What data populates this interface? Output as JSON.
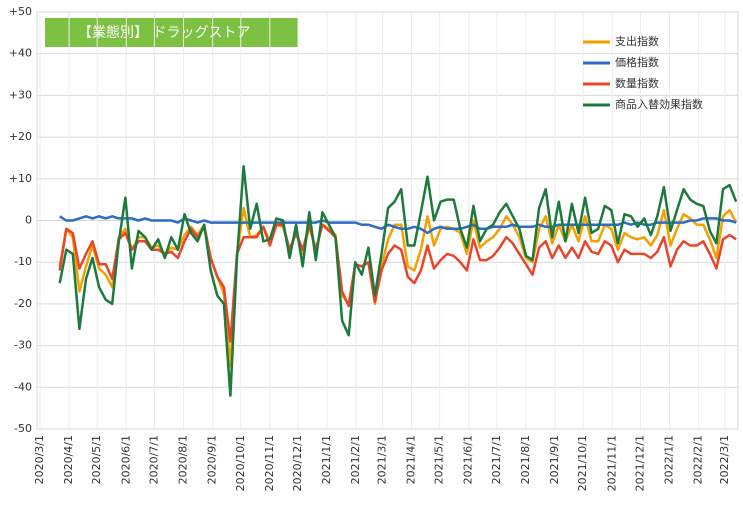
{
  "chart_data": {
    "type": "line",
    "title": "【業態別】 ドラッグストア",
    "x": [
      "2020/3/22",
      "2020/3/29",
      "2020/4/5",
      "2020/4/12",
      "2020/4/19",
      "2020/4/26",
      "2020/5/3",
      "2020/5/10",
      "2020/5/17",
      "2020/5/24",
      "2020/5/31",
      "2020/6/7",
      "2020/6/14",
      "2020/6/21",
      "2020/6/28",
      "2020/7/5",
      "2020/7/12",
      "2020/7/19",
      "2020/7/26",
      "2020/8/2",
      "2020/8/9",
      "2020/8/16",
      "2020/8/23",
      "2020/8/30",
      "2020/9/6",
      "2020/9/13",
      "2020/9/20",
      "2020/9/27",
      "2020/10/4",
      "2020/10/11",
      "2020/10/18",
      "2020/10/25",
      "2020/11/1",
      "2020/11/8",
      "2020/11/15",
      "2020/11/22",
      "2020/11/29",
      "2020/12/6",
      "2020/12/13",
      "2020/12/20",
      "2020/12/27",
      "2021/1/3",
      "2021/1/10",
      "2021/1/17",
      "2021/1/24",
      "2021/1/31",
      "2021/2/7",
      "2021/2/14",
      "2021/2/21",
      "2021/2/28",
      "2021/3/7",
      "2021/3/14",
      "2021/3/21",
      "2021/3/28",
      "2021/4/4",
      "2021/4/11",
      "2021/4/18",
      "2021/4/25",
      "2021/5/2",
      "2021/5/9",
      "2021/5/16",
      "2021/5/23",
      "2021/5/30",
      "2021/6/6",
      "2021/6/13",
      "2021/6/20",
      "2021/6/27",
      "2021/7/4",
      "2021/7/11",
      "2021/7/18",
      "2021/7/25",
      "2021/8/1",
      "2021/8/8",
      "2021/8/15",
      "2021/8/22",
      "2021/8/29",
      "2021/9/5",
      "2021/9/12",
      "2021/9/19",
      "2021/9/26",
      "2021/10/3",
      "2021/10/10",
      "2021/10/17",
      "2021/10/24",
      "2021/10/31",
      "2021/11/7",
      "2021/11/14",
      "2021/11/21",
      "2021/11/28",
      "2021/12/5",
      "2021/12/12",
      "2021/12/19",
      "2021/12/26",
      "2022/1/2",
      "2022/1/9",
      "2022/1/16",
      "2022/1/23",
      "2022/1/30",
      "2022/2/6",
      "2022/2/13",
      "2022/2/20",
      "2022/2/27",
      "2022/3/6",
      "2022/3/13"
    ],
    "series": [
      {
        "name": "支出指数",
        "color": "#f5a000",
        "values": [
          -11,
          -2,
          -4,
          -17,
          -11,
          -6,
          -11.5,
          -13,
          -16,
          -4,
          -2,
          -7,
          -4,
          -4,
          -6.5,
          -6,
          -8,
          -6.5,
          -7,
          -3.5,
          -1.5,
          -3.5,
          -1,
          -9,
          -13.5,
          -17.5,
          -35,
          -8,
          3,
          -4,
          -3.5,
          -1.5,
          -5,
          -1,
          -1.5,
          -7,
          -3,
          -8,
          -1.5,
          -7,
          -1,
          -2,
          -3.5,
          -18,
          -20,
          -10.5,
          -11,
          -10,
          -20,
          -11,
          -4.5,
          -1,
          -1,
          -11,
          -12,
          -7,
          1,
          -6,
          -2,
          -1.5,
          -2,
          -3,
          -8,
          0,
          -6.5,
          -5,
          -4,
          -2,
          1,
          -1,
          -4,
          -9,
          -10,
          -2,
          1,
          -5.5,
          -1,
          -5,
          -1,
          -5,
          1,
          -5,
          -5,
          -1,
          -2,
          -7,
          -3,
          -4,
          -4.5,
          -4,
          -6,
          -3.5,
          2.5,
          -6,
          -2,
          1.5,
          0.5,
          -1,
          -1,
          -4.5,
          -9,
          1,
          2.5,
          -0.5
        ]
      },
      {
        "name": "価格指数",
        "color": "#2e6bc4",
        "values": [
          1,
          0,
          0,
          0.5,
          1,
          0.5,
          1,
          0.5,
          1,
          0.5,
          0.5,
          0.5,
          0,
          0.5,
          0,
          0,
          0,
          0,
          -0.5,
          0.5,
          0,
          -0.5,
          0,
          -0.5,
          -0.5,
          -0.5,
          -0.5,
          -0.5,
          -0.5,
          -0.5,
          -0.5,
          -0.5,
          -0.5,
          -0.5,
          -0.5,
          -0.5,
          -0.5,
          -0.5,
          -0.5,
          -0.5,
          0,
          -0.5,
          -0.5,
          -0.5,
          -0.5,
          -0.5,
          -1,
          -1,
          -1.5,
          -2,
          -1,
          -1.5,
          -2,
          -2,
          -1.5,
          -2,
          -3,
          -2,
          -1.5,
          -2,
          -2,
          -2,
          -1.5,
          -1,
          -2,
          -2,
          -1.5,
          -1.5,
          -1.5,
          -1,
          -1.5,
          -1.5,
          -1.5,
          -1,
          -1.5,
          -1.5,
          -1,
          -1,
          -1,
          -1,
          -1,
          -1,
          -1,
          -1,
          -1,
          -1,
          -0.5,
          -1,
          -0.5,
          -1,
          -1,
          -0.5,
          -0.5,
          -0.5,
          -0.5,
          -0.5,
          0,
          0,
          0.5,
          0.5,
          0.5,
          0,
          0,
          -0.5
        ]
      },
      {
        "name": "数量指数",
        "color": "#e8452c",
        "values": [
          -12,
          -2,
          -3,
          -11.5,
          -8,
          -5,
          -10.5,
          -10.5,
          -14,
          -4.5,
          -3,
          -7,
          -5,
          -5,
          -7,
          -7,
          -8,
          -7.5,
          -9,
          -5,
          -2,
          -4,
          -1.5,
          -9,
          -13.5,
          -16,
          -29,
          -8,
          -4,
          -4,
          -4,
          -1.5,
          -6,
          -1,
          -1,
          -7,
          -3,
          -7,
          -1,
          -7,
          -1,
          -2.5,
          -4,
          -17,
          -20.5,
          -10.5,
          -11,
          -10,
          -19.5,
          -12,
          -8,
          -6,
          -7,
          -13.5,
          -15,
          -12,
          -6,
          -11.5,
          -9.5,
          -8,
          -8.5,
          -10,
          -12,
          -4.5,
          -9.5,
          -9.5,
          -8.5,
          -6.5,
          -4,
          -5.5,
          -8,
          -10.5,
          -13,
          -6.5,
          -5,
          -9,
          -6,
          -9,
          -6.5,
          -9,
          -5,
          -7.5,
          -8,
          -5,
          -6,
          -10,
          -7,
          -8,
          -8,
          -8,
          -9,
          -7.5,
          -4,
          -11,
          -7,
          -5,
          -6,
          -6,
          -5,
          -8,
          -11.5,
          -4.5,
          -3.5,
          -4.5
        ]
      },
      {
        "name": "商品入替効果指数",
        "color": "#1d7a3e",
        "values": [
          -15,
          -7,
          -8,
          -26,
          -14,
          -9,
          -16,
          -19,
          -20,
          -5,
          5.5,
          -11.5,
          -2.5,
          -4,
          -7,
          -4.5,
          -9,
          -4,
          -7,
          1.5,
          -3,
          -5,
          -1,
          -12,
          -18,
          -20,
          -42,
          -9,
          13,
          -2,
          4,
          -5,
          -4.5,
          0.5,
          0,
          -9,
          -1,
          -11,
          2,
          -9.5,
          2,
          -1,
          -4,
          -24,
          -27.5,
          -10,
          -13,
          -6.5,
          -18,
          -8,
          3,
          4.5,
          7.5,
          -6,
          -6,
          2,
          10.5,
          0,
          4.5,
          5,
          5,
          -2,
          -6.5,
          3.5,
          -5,
          -2,
          -1,
          2,
          4,
          1,
          -2,
          -8.5,
          -9.5,
          3,
          7.5,
          -4,
          4.5,
          -5,
          4,
          -3,
          5.5,
          -3,
          -2,
          3.5,
          2.5,
          -5.5,
          1.5,
          1,
          -1.5,
          0.5,
          -3.5,
          1,
          8,
          -2.5,
          2.5,
          7.5,
          5,
          4,
          3.5,
          -2.5,
          -5.5,
          7.5,
          8.5,
          4.5
        ]
      }
    ],
    "xlim": [
      "2020/3/1",
      "2022/3/15"
    ],
    "xticks": [
      "2020/3/1",
      "2020/4/1",
      "2020/5/1",
      "2020/6/1",
      "2020/7/1",
      "2020/8/1",
      "2020/9/1",
      "2020/10/1",
      "2020/11/1",
      "2020/12/1",
      "2021/1/1",
      "2021/2/1",
      "2021/3/1",
      "2021/4/1",
      "2021/5/1",
      "2021/6/1",
      "2021/7/1",
      "2021/8/1",
      "2021/9/1",
      "2021/10/1",
      "2021/11/1",
      "2021/12/1",
      "2022/1/1",
      "2022/2/1",
      "2022/3/1"
    ],
    "ylim": [
      -50,
      50
    ],
    "yticks": [
      {
        "value": 50,
        "label": "+50"
      },
      {
        "value": 40,
        "label": "+40"
      },
      {
        "value": 30,
        "label": "+30"
      },
      {
        "value": 20,
        "label": "+20"
      },
      {
        "value": 10,
        "label": "+10"
      },
      0,
      -10,
      -20,
      -30,
      -40,
      -50
    ],
    "grid": true,
    "legend": "upper right",
    "title_color": "#7dc142"
  }
}
